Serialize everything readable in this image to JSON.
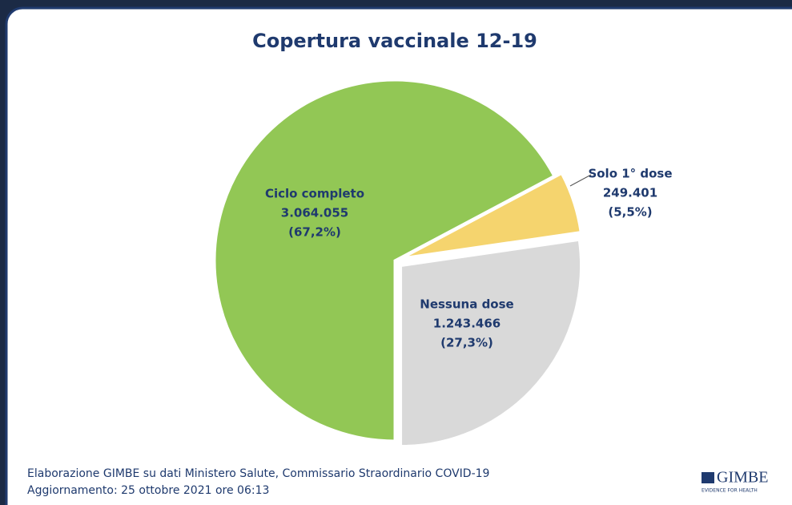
{
  "chart_data": {
    "type": "pie",
    "title": "Copertura vaccinale 12-19",
    "categories": [
      "Ciclo completo",
      "Solo 1° dose",
      "Nessuna dose"
    ],
    "values": [
      3064055,
      249401,
      1243466
    ],
    "value_labels": [
      "3.064.055",
      "249.401",
      "1.243.466"
    ],
    "percent_labels": [
      "(67,2%)",
      "(5,5%)",
      "(27,3%)"
    ],
    "colors": [
      "#92c755",
      "#f5d46e",
      "#d9d9d9"
    ]
  },
  "footer": [
    "Elaborazione GIMBE su dati Ministero Salute, Commissario Straordinario COVID-19",
    "Aggiornamento: 25 ottobre 2021 ore 06:13"
  ],
  "logo": {
    "name": "GIMBE",
    "tagline": "EVIDENCE FOR HEALTH"
  }
}
